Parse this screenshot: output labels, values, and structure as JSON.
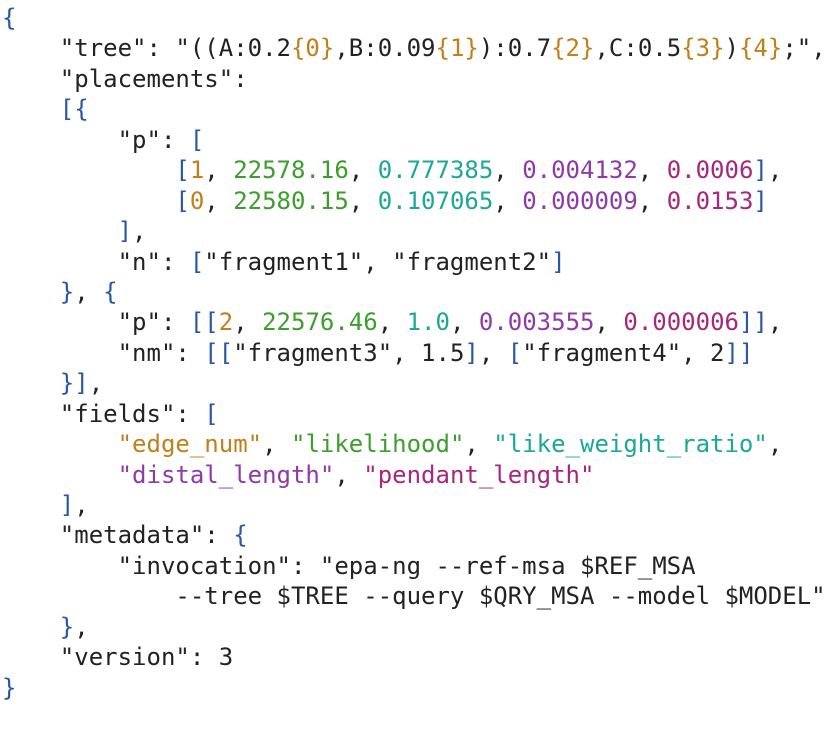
{
  "code": {
    "lines": [
      [
        [
          "{",
          "#2a56a6"
        ]
      ],
      [
        [
          "\"tree\": \"((A:0.2",
          "#222222"
        ],
        [
          "{0}",
          "#c0801a"
        ],
        [
          ",B:0.09",
          "#222222"
        ],
        [
          "{1}",
          "#c0801a"
        ],
        [
          "):0.7",
          "#222222"
        ],
        [
          "{2}",
          "#c0801a"
        ],
        [
          ",C:0.5",
          "#222222"
        ],
        [
          "{3}",
          "#c0801a"
        ],
        [
          ")",
          "#222222"
        ],
        [
          "{4}",
          "#c0801a"
        ],
        [
          ";\",",
          "#222222"
        ]
      ],
      [
        [
          "\"placements\":",
          "#222222"
        ]
      ],
      [
        [
          "[{",
          "#2a56a6"
        ]
      ],
      [
        [
          "\"p\": ",
          "#222222"
        ],
        [
          "[",
          "#2a56a6"
        ]
      ],
      [
        [
          "[",
          "#2a56a6"
        ],
        [
          "1",
          "#c0801a"
        ],
        [
          ", ",
          "#222222"
        ],
        [
          "22578.16",
          "#3c9e2c"
        ],
        [
          ", ",
          "#222222"
        ],
        [
          "0.777385",
          "#1ba89a"
        ],
        [
          ", ",
          "#222222"
        ],
        [
          "0.004132",
          "#8e3aa8"
        ],
        [
          ", ",
          "#222222"
        ],
        [
          "0.0006",
          "#a8267e"
        ],
        [
          "]",
          "#2a56a6"
        ],
        [
          ",",
          "#222222"
        ]
      ],
      [
        [
          "[",
          "#2a56a6"
        ],
        [
          "0",
          "#c0801a"
        ],
        [
          ", ",
          "#222222"
        ],
        [
          "22580.15",
          "#3c9e2c"
        ],
        [
          ", ",
          "#222222"
        ],
        [
          "0.107065",
          "#1ba89a"
        ],
        [
          ", ",
          "#222222"
        ],
        [
          "0.000009",
          "#8e3aa8"
        ],
        [
          ", ",
          "#222222"
        ],
        [
          "0.0153",
          "#a8267e"
        ],
        [
          "]",
          "#2a56a6"
        ]
      ],
      [
        [
          "]",
          "#2a56a6"
        ],
        [
          ",",
          "#222222"
        ]
      ],
      [
        [
          "\"n\": ",
          "#222222"
        ],
        [
          "[",
          "#2a56a6"
        ],
        [
          "\"fragment1\", \"fragment2\"",
          "#222222"
        ],
        [
          "]",
          "#2a56a6"
        ]
      ],
      [
        [
          "}",
          "#2a56a6"
        ],
        [
          ", ",
          "#222222"
        ],
        [
          "{",
          "#2a56a6"
        ]
      ],
      [
        [
          "\"p\": ",
          "#222222"
        ],
        [
          "[[",
          "#2a56a6"
        ],
        [
          "2",
          "#c0801a"
        ],
        [
          ", ",
          "#222222"
        ],
        [
          "22576.46",
          "#3c9e2c"
        ],
        [
          ", ",
          "#222222"
        ],
        [
          "1.0",
          "#1ba89a"
        ],
        [
          ", ",
          "#222222"
        ],
        [
          "0.003555",
          "#8e3aa8"
        ],
        [
          ", ",
          "#222222"
        ],
        [
          "0.000006",
          "#a8267e"
        ],
        [
          "]]",
          "#2a56a6"
        ],
        [
          ",",
          "#222222"
        ]
      ],
      [
        [
          "\"nm\": ",
          "#222222"
        ],
        [
          "[[",
          "#2a56a6"
        ],
        [
          "\"fragment3\", 1.5",
          "#222222"
        ],
        [
          "]",
          "#2a56a6"
        ],
        [
          ", ",
          "#222222"
        ],
        [
          "[",
          "#2a56a6"
        ],
        [
          "\"fragment4\", 2",
          "#222222"
        ],
        [
          "]]",
          "#2a56a6"
        ]
      ],
      [
        [
          "}]",
          "#2a56a6"
        ],
        [
          ",",
          "#222222"
        ]
      ],
      [
        [
          "\"fields\": ",
          "#222222"
        ],
        [
          "[",
          "#2a56a6"
        ]
      ],
      [
        [
          "\"edge_num\"",
          "#c0801a"
        ],
        [
          ", ",
          "#222222"
        ],
        [
          "\"likelihood\"",
          "#3c9e2c"
        ],
        [
          ", ",
          "#222222"
        ],
        [
          "\"like_weight_ratio\"",
          "#1ba89a"
        ],
        [
          ",",
          "#222222"
        ]
      ],
      [
        [
          "\"distal_length\"",
          "#8e3aa8"
        ],
        [
          ", ",
          "#222222"
        ],
        [
          "\"pendant_length\"",
          "#a8267e"
        ]
      ],
      [
        [
          "]",
          "#2a56a6"
        ],
        [
          ",",
          "#222222"
        ]
      ],
      [
        [
          "\"metadata\": ",
          "#222222"
        ],
        [
          "{",
          "#2a56a6"
        ]
      ],
      [
        [
          "\"invocation\": \"epa-ng --ref-msa $REF_MSA",
          "#222222"
        ]
      ],
      [
        [
          "--tree $TREE --query $QRY_MSA --model $MODEL\"",
          "#222222"
        ]
      ],
      [
        [
          "}",
          "#2a56a6"
        ],
        [
          ",",
          "#222222"
        ]
      ],
      [
        [
          "\"version\": 3",
          "#222222"
        ]
      ],
      [
        [
          "}",
          "#2a56a6"
        ]
      ]
    ]
  }
}
